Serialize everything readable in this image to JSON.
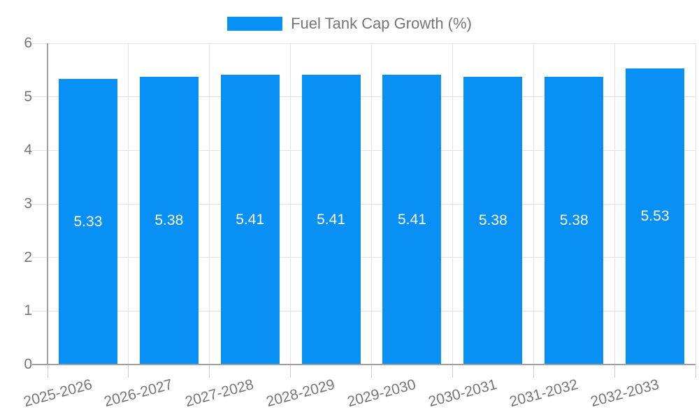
{
  "legend": {
    "label": "Fuel Tank Cap Growth (%)",
    "swatch_color": "#0990f5",
    "text_color": "#757575"
  },
  "chart_data": {
    "type": "bar",
    "title": "Fuel Tank Cap Growth (%)",
    "categories": [
      "2025-2026",
      "2026-2027",
      "2027-2028",
      "2028-2029",
      "2029-2030",
      "2030-2031",
      "2031-2032",
      "2032-2033"
    ],
    "series": [
      {
        "name": "Fuel Tank Cap Growth (%)",
        "values": [
          5.33,
          5.38,
          5.41,
          5.41,
          5.41,
          5.38,
          5.38,
          5.53
        ]
      }
    ],
    "value_labels": [
      "5.33",
      "5.38",
      "5.41",
      "5.41",
      "5.41",
      "5.38",
      "5.38",
      "5.53"
    ],
    "xlabel": "",
    "ylabel": "",
    "ylim": [
      0,
      6
    ],
    "y_ticks": [
      0,
      1,
      2,
      3,
      4,
      5,
      6
    ],
    "grid": true,
    "legend_position": "top",
    "bar_color": "#0990f5",
    "bar_label_color": "#ffffff",
    "axis_color": "#a0a0a0",
    "grid_color": "#e3e3e3",
    "tick_mark_color": "#cccccc",
    "tick_label_color": "#757575",
    "x_label_rotation_deg": -15
  }
}
